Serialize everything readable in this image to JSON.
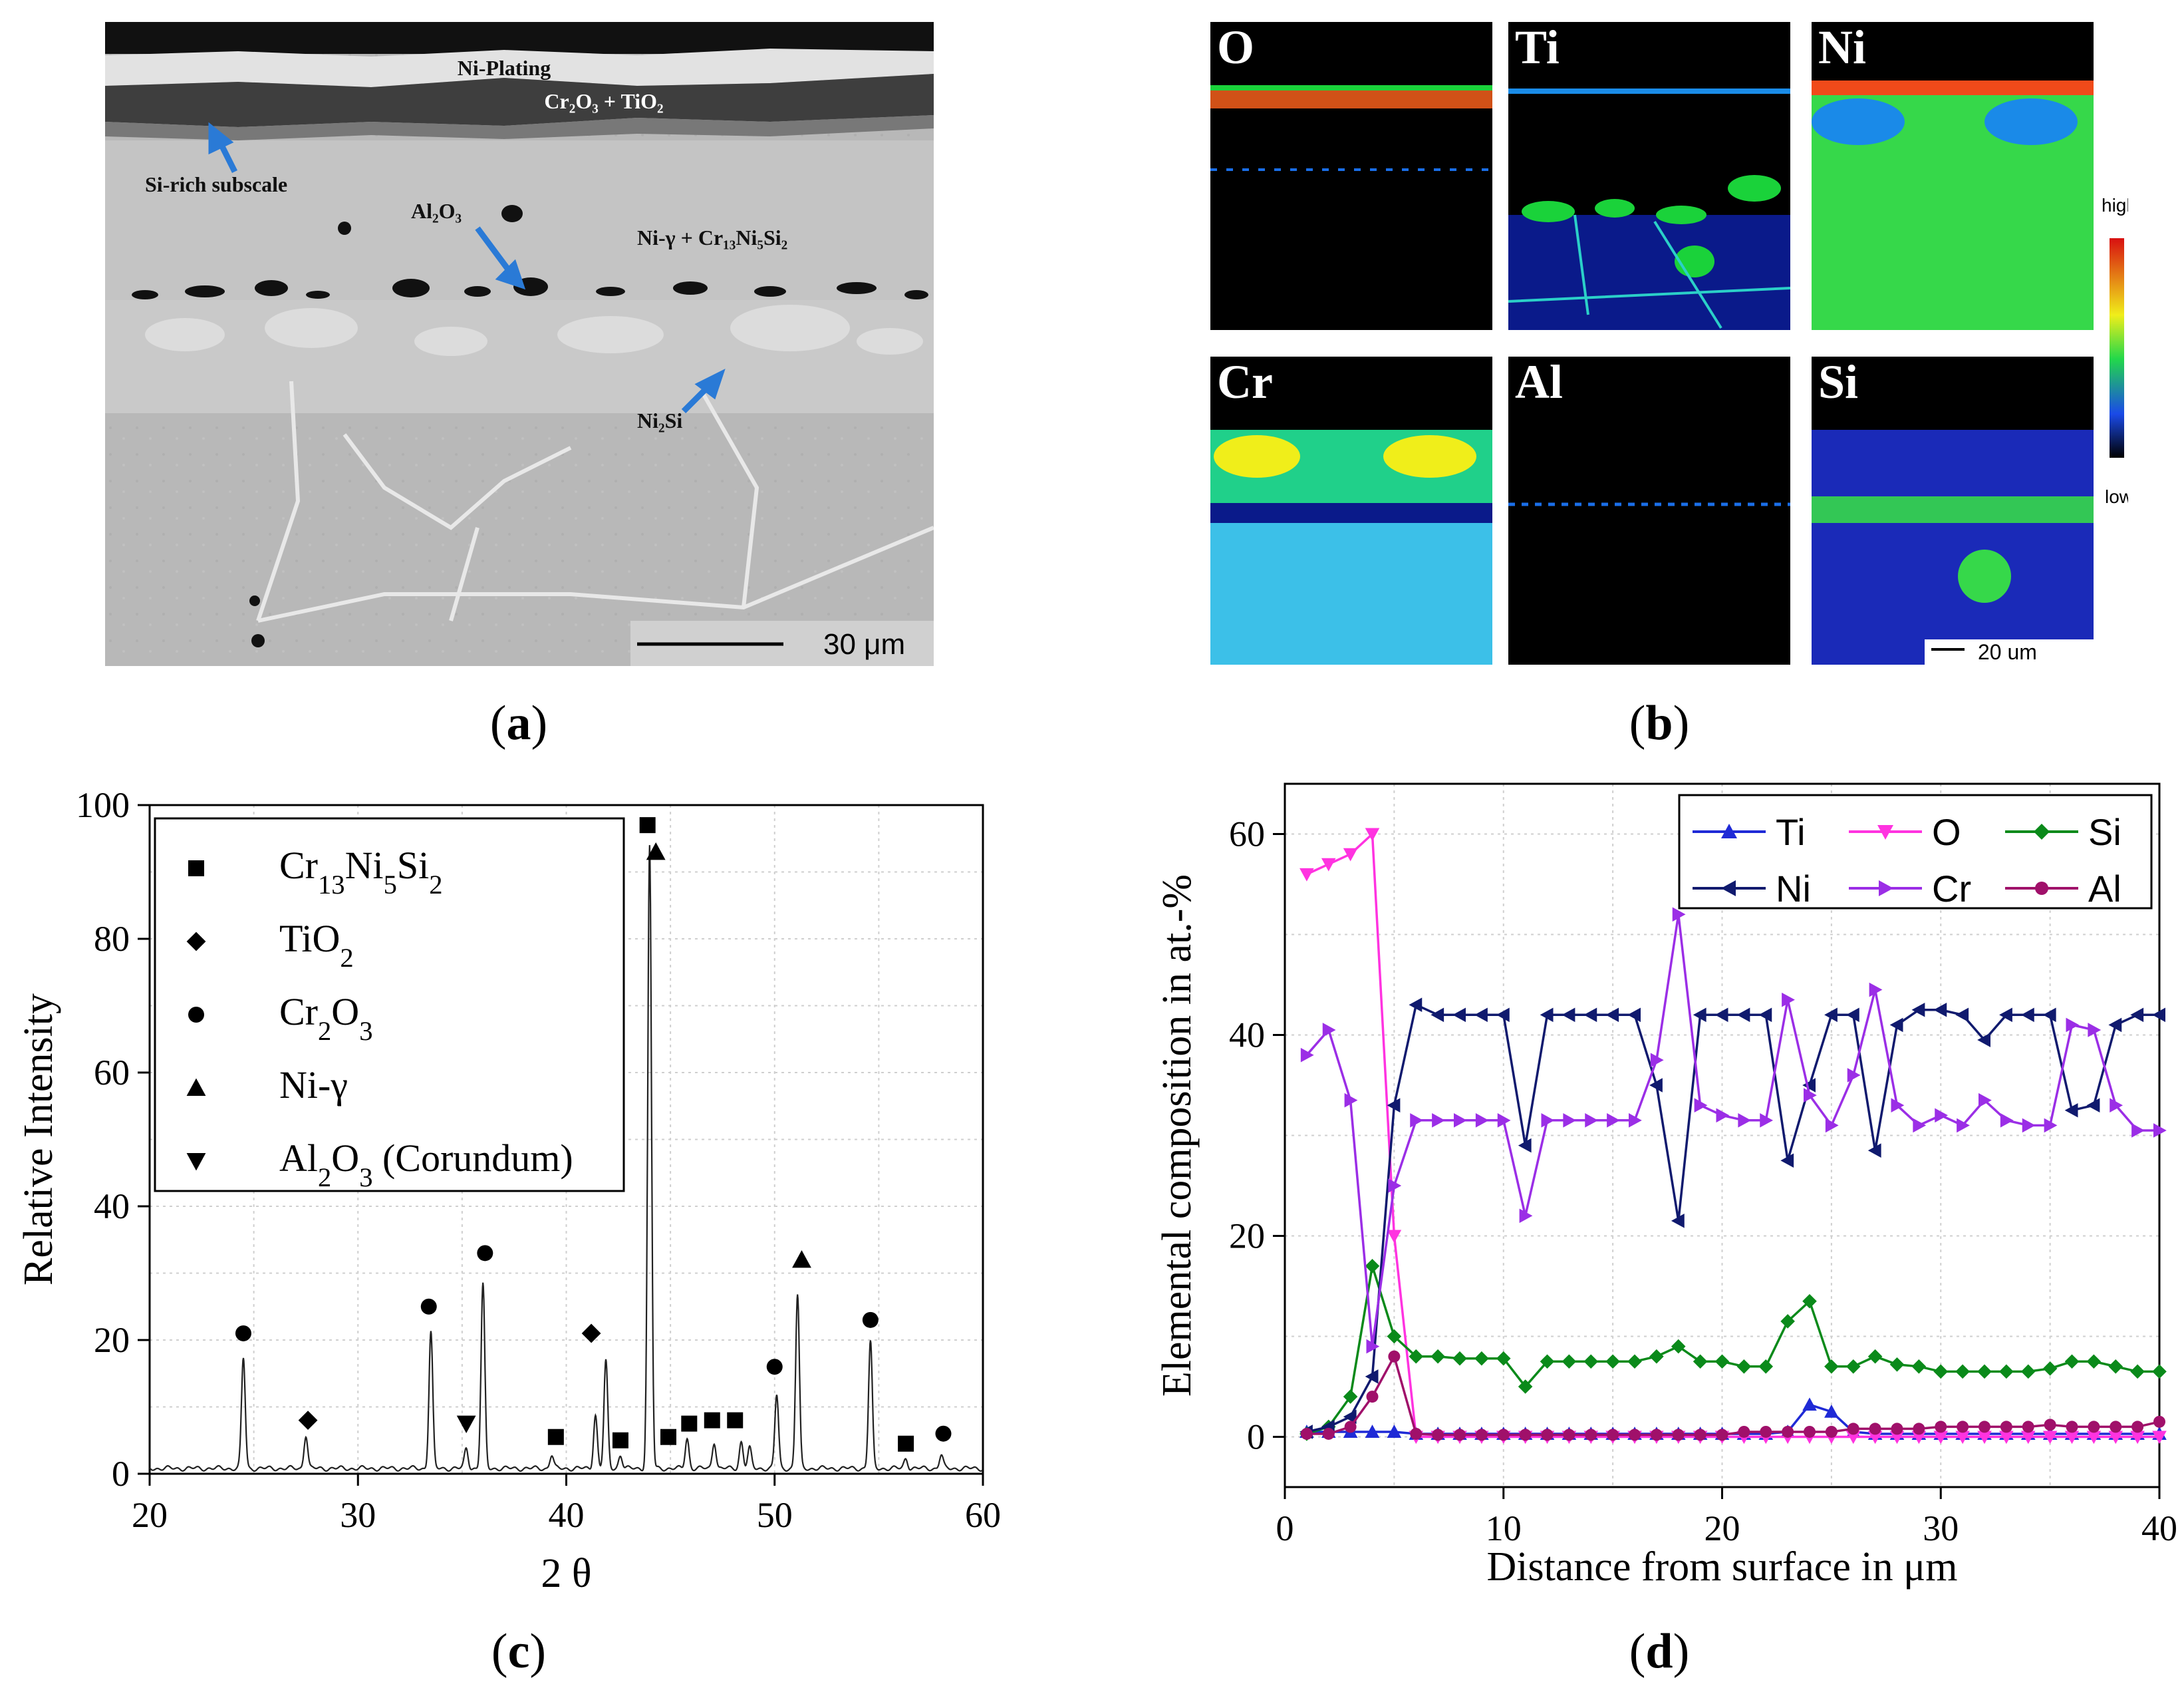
{
  "panels": {
    "a": {
      "caption": "a",
      "labels": {
        "ni_plating": "Ni-Plating",
        "scale": "Cr₂O₃ + TiO₂",
        "subscale": "Si-rich subscale",
        "al2o3": "Al₂O₃",
        "matrix": "Ni-γ + Cr₁₃Ni₅Si₂",
        "ni2si": "Ni₂Si"
      },
      "scalebar": "30 μm"
    },
    "b": {
      "caption": "b",
      "maps": [
        "O",
        "Ti",
        "Ni",
        "Cr",
        "Al",
        "Si"
      ],
      "colorbar": {
        "high": "high",
        "low": "low"
      },
      "scalebar": "20 um"
    },
    "c": {
      "caption": "c"
    },
    "d": {
      "caption": "d"
    }
  },
  "chart_data": [
    {
      "id": "c",
      "type": "line",
      "xlabel": "2 θ",
      "ylabel": "Relative Intensity",
      "xlim": [
        20,
        60
      ],
      "ylim": [
        0,
        100
      ],
      "xticks": [
        20,
        30,
        40,
        50,
        60
      ],
      "yticks": [
        0,
        20,
        40,
        60,
        80,
        100
      ],
      "grid": true,
      "legend_position": "top-left",
      "legend": [
        {
          "marker": "square",
          "label": "Cr13Ni5Si2",
          "label_html": "Cr<tspan baseline-shift='sub' font-size='0.7em'>13</tspan>Ni<tspan baseline-shift='sub' font-size='0.7em'>5</tspan>Si<tspan baseline-shift='sub' font-size='0.7em'>2</tspan>"
        },
        {
          "marker": "diamond",
          "label": "TiO2",
          "label_html": "TiO<tspan baseline-shift='sub' font-size='0.7em'>2</tspan>"
        },
        {
          "marker": "circle",
          "label": "Cr2O3",
          "label_html": "Cr<tspan baseline-shift='sub' font-size='0.7em'>2</tspan>O<tspan baseline-shift='sub' font-size='0.7em'>3</tspan>"
        },
        {
          "marker": "triangle-up",
          "label": "Ni-γ",
          "label_html": "Ni-γ"
        },
        {
          "marker": "triangle-down",
          "label": "Al2O3 (Corundum)",
          "label_html": "Al<tspan baseline-shift='sub' font-size='0.7em'>2</tspan>O<tspan baseline-shift='sub' font-size='0.7em'>3</tspan> (Corundum)"
        }
      ],
      "peaks": [
        [
          24.5,
          16.5
        ],
        [
          27.5,
          5
        ],
        [
          33.5,
          20.5
        ],
        [
          35.2,
          3
        ],
        [
          36.0,
          27.5
        ],
        [
          39.3,
          2
        ],
        [
          41.4,
          8
        ],
        [
          41.9,
          16
        ],
        [
          42.6,
          2
        ],
        [
          44.0,
          93
        ],
        [
          45.8,
          4.5
        ],
        [
          47.1,
          4
        ],
        [
          48.4,
          4
        ],
        [
          48.8,
          3
        ],
        [
          50.1,
          11
        ],
        [
          51.1,
          26
        ],
        [
          54.6,
          19
        ],
        [
          56.3,
          1.5
        ],
        [
          58.0,
          2
        ]
      ],
      "markers": [
        {
          "type": "circle",
          "x": 24.5,
          "y": 21
        },
        {
          "type": "diamond",
          "x": 27.6,
          "y": 8
        },
        {
          "type": "circle",
          "x": 33.4,
          "y": 25
        },
        {
          "type": "triangle-down",
          "x": 35.2,
          "y": 7.5
        },
        {
          "type": "circle",
          "x": 36.1,
          "y": 33
        },
        {
          "type": "square",
          "x": 39.5,
          "y": 5.5
        },
        {
          "type": "diamond",
          "x": 41.2,
          "y": 21
        },
        {
          "type": "square",
          "x": 42.6,
          "y": 5
        },
        {
          "type": "square",
          "x": 43.9,
          "y": 97
        },
        {
          "type": "triangle-up",
          "x": 44.3,
          "y": 93
        },
        {
          "type": "square",
          "x": 44.9,
          "y": 5.5
        },
        {
          "type": "square",
          "x": 45.9,
          "y": 7.5
        },
        {
          "type": "square",
          "x": 47.0,
          "y": 8
        },
        {
          "type": "square",
          "x": 48.1,
          "y": 8
        },
        {
          "type": "circle",
          "x": 50.0,
          "y": 16
        },
        {
          "type": "triangle-up",
          "x": 51.3,
          "y": 32
        },
        {
          "type": "circle",
          "x": 54.6,
          "y": 23
        },
        {
          "type": "square",
          "x": 56.3,
          "y": 4.5
        },
        {
          "type": "circle",
          "x": 58.1,
          "y": 6
        }
      ]
    },
    {
      "id": "d",
      "type": "line",
      "xlabel": "Distance from surface in μm",
      "ylabel": "Elemental composition in at.-%",
      "xlim": [
        0,
        40
      ],
      "ylim": [
        -5,
        65
      ],
      "xticks": [
        0,
        10,
        20,
        30,
        40
      ],
      "yticks": [
        0,
        20,
        40,
        60
      ],
      "grid": true,
      "legend_position": "top-right",
      "series": [
        {
          "name": "Ti",
          "color": "#1f2ad6",
          "marker": "triangle-up",
          "x": [
            1,
            2,
            3,
            4,
            5,
            6,
            7,
            8,
            9,
            10,
            11,
            12,
            13,
            14,
            15,
            16,
            17,
            18,
            19,
            20,
            21,
            22,
            23,
            24,
            25,
            26,
            27,
            28,
            29,
            30,
            31,
            32,
            33,
            34,
            35,
            36,
            37,
            38,
            39,
            40
          ],
          "y": [
            0.5,
            0.5,
            0.5,
            0.5,
            0.5,
            0.3,
            0.3,
            0.3,
            0.3,
            0.3,
            0.3,
            0.3,
            0.3,
            0.3,
            0.3,
            0.3,
            0.3,
            0.3,
            0.3,
            0.3,
            0.3,
            0.3,
            0.5,
            3.2,
            2.5,
            0.5,
            0.3,
            0.3,
            0.3,
            0.3,
            0.3,
            0.3,
            0.3,
            0.3,
            0.3,
            0.3,
            0.3,
            0.3,
            0.3,
            0.3
          ]
        },
        {
          "name": "O",
          "color": "#ff33e0",
          "marker": "triangle-down",
          "x": [
            1,
            2,
            3,
            4,
            5,
            6,
            7,
            8,
            9,
            10,
            11,
            12,
            13,
            14,
            15,
            16,
            17,
            18,
            19,
            20,
            21,
            22,
            23,
            24,
            25,
            26,
            27,
            28,
            29,
            30,
            31,
            32,
            33,
            34,
            35,
            36,
            37,
            38,
            39,
            40
          ],
          "y": [
            56,
            57,
            58,
            60,
            20,
            0,
            0,
            0,
            0,
            0,
            0,
            0,
            0,
            0,
            0,
            0,
            0,
            0,
            0,
            0,
            0,
            0,
            0,
            0,
            0,
            0,
            0,
            0,
            0,
            0,
            0,
            0,
            0,
            0,
            0,
            0,
            0,
            0,
            0,
            0
          ]
        },
        {
          "name": "Si",
          "color": "#0a8a1a",
          "marker": "diamond",
          "x": [
            1,
            2,
            3,
            4,
            5,
            6,
            7,
            8,
            9,
            10,
            11,
            12,
            13,
            14,
            15,
            16,
            17,
            18,
            19,
            20,
            21,
            22,
            23,
            24,
            25,
            26,
            27,
            28,
            29,
            30,
            31,
            32,
            33,
            34,
            35,
            36,
            37,
            38,
            39,
            40
          ],
          "y": [
            0.3,
            1,
            4,
            17,
            10,
            8,
            8,
            7.8,
            7.8,
            7.8,
            5,
            7.5,
            7.5,
            7.5,
            7.5,
            7.5,
            8,
            9,
            7.5,
            7.5,
            7,
            7,
            11.5,
            13.5,
            7,
            7,
            8,
            7.2,
            7,
            6.5,
            6.5,
            6.5,
            6.5,
            6.5,
            6.8,
            7.5,
            7.5,
            7,
            6.5,
            6.5
          ]
        },
        {
          "name": "Ni",
          "color": "#101a6e",
          "marker": "triangle-left",
          "x": [
            1,
            2,
            3,
            4,
            5,
            6,
            7,
            8,
            9,
            10,
            11,
            12,
            13,
            14,
            15,
            16,
            17,
            18,
            19,
            20,
            21,
            22,
            23,
            24,
            25,
            26,
            27,
            28,
            29,
            30,
            31,
            32,
            33,
            34,
            35,
            36,
            37,
            38,
            39,
            40
          ],
          "y": [
            0.5,
            1,
            2,
            6,
            33,
            43,
            42,
            42,
            42,
            42,
            29,
            42,
            42,
            42,
            42,
            42,
            35,
            21.5,
            42,
            42,
            42,
            42,
            27.5,
            35,
            42,
            42,
            28.5,
            41,
            42.5,
            42.5,
            42,
            39.5,
            42,
            42,
            42,
            32.5,
            33,
            41,
            42,
            42
          ]
        },
        {
          "name": "Cr",
          "color": "#9b2ee6",
          "marker": "triangle-right",
          "x": [
            1,
            2,
            3,
            4,
            5,
            6,
            7,
            8,
            9,
            10,
            11,
            12,
            13,
            14,
            15,
            16,
            17,
            18,
            19,
            20,
            21,
            22,
            23,
            24,
            25,
            26,
            27,
            28,
            29,
            30,
            31,
            32,
            33,
            34,
            35,
            36,
            37,
            38,
            39,
            40
          ],
          "y": [
            38,
            40.5,
            33.5,
            9,
            25,
            31.5,
            31.5,
            31.5,
            31.5,
            31.5,
            22,
            31.5,
            31.5,
            31.5,
            31.5,
            31.5,
            37.5,
            52,
            33,
            32,
            31.5,
            31.5,
            43.5,
            34,
            31,
            36,
            44.5,
            33,
            31,
            32,
            31,
            33.5,
            31.5,
            31,
            31,
            41,
            40.5,
            33,
            30.5,
            30.5
          ]
        },
        {
          "name": "Al",
          "color": "#a0106a",
          "marker": "circle",
          "x": [
            1,
            2,
            3,
            4,
            5,
            6,
            7,
            8,
            9,
            10,
            11,
            12,
            13,
            14,
            15,
            16,
            17,
            18,
            19,
            20,
            21,
            22,
            23,
            24,
            25,
            26,
            27,
            28,
            29,
            30,
            31,
            32,
            33,
            34,
            35,
            36,
            37,
            38,
            39,
            40
          ],
          "y": [
            0.3,
            0.3,
            1,
            4,
            8,
            0.3,
            0.2,
            0.2,
            0.2,
            0.2,
            0.2,
            0.2,
            0.2,
            0.2,
            0.2,
            0.2,
            0.2,
            0.2,
            0.2,
            0.2,
            0.5,
            0.5,
            0.5,
            0.5,
            0.5,
            0.8,
            0.8,
            0.8,
            0.8,
            1,
            1,
            1,
            1,
            1,
            1.2,
            1,
            1,
            1,
            1,
            1.5
          ]
        }
      ]
    }
  ]
}
